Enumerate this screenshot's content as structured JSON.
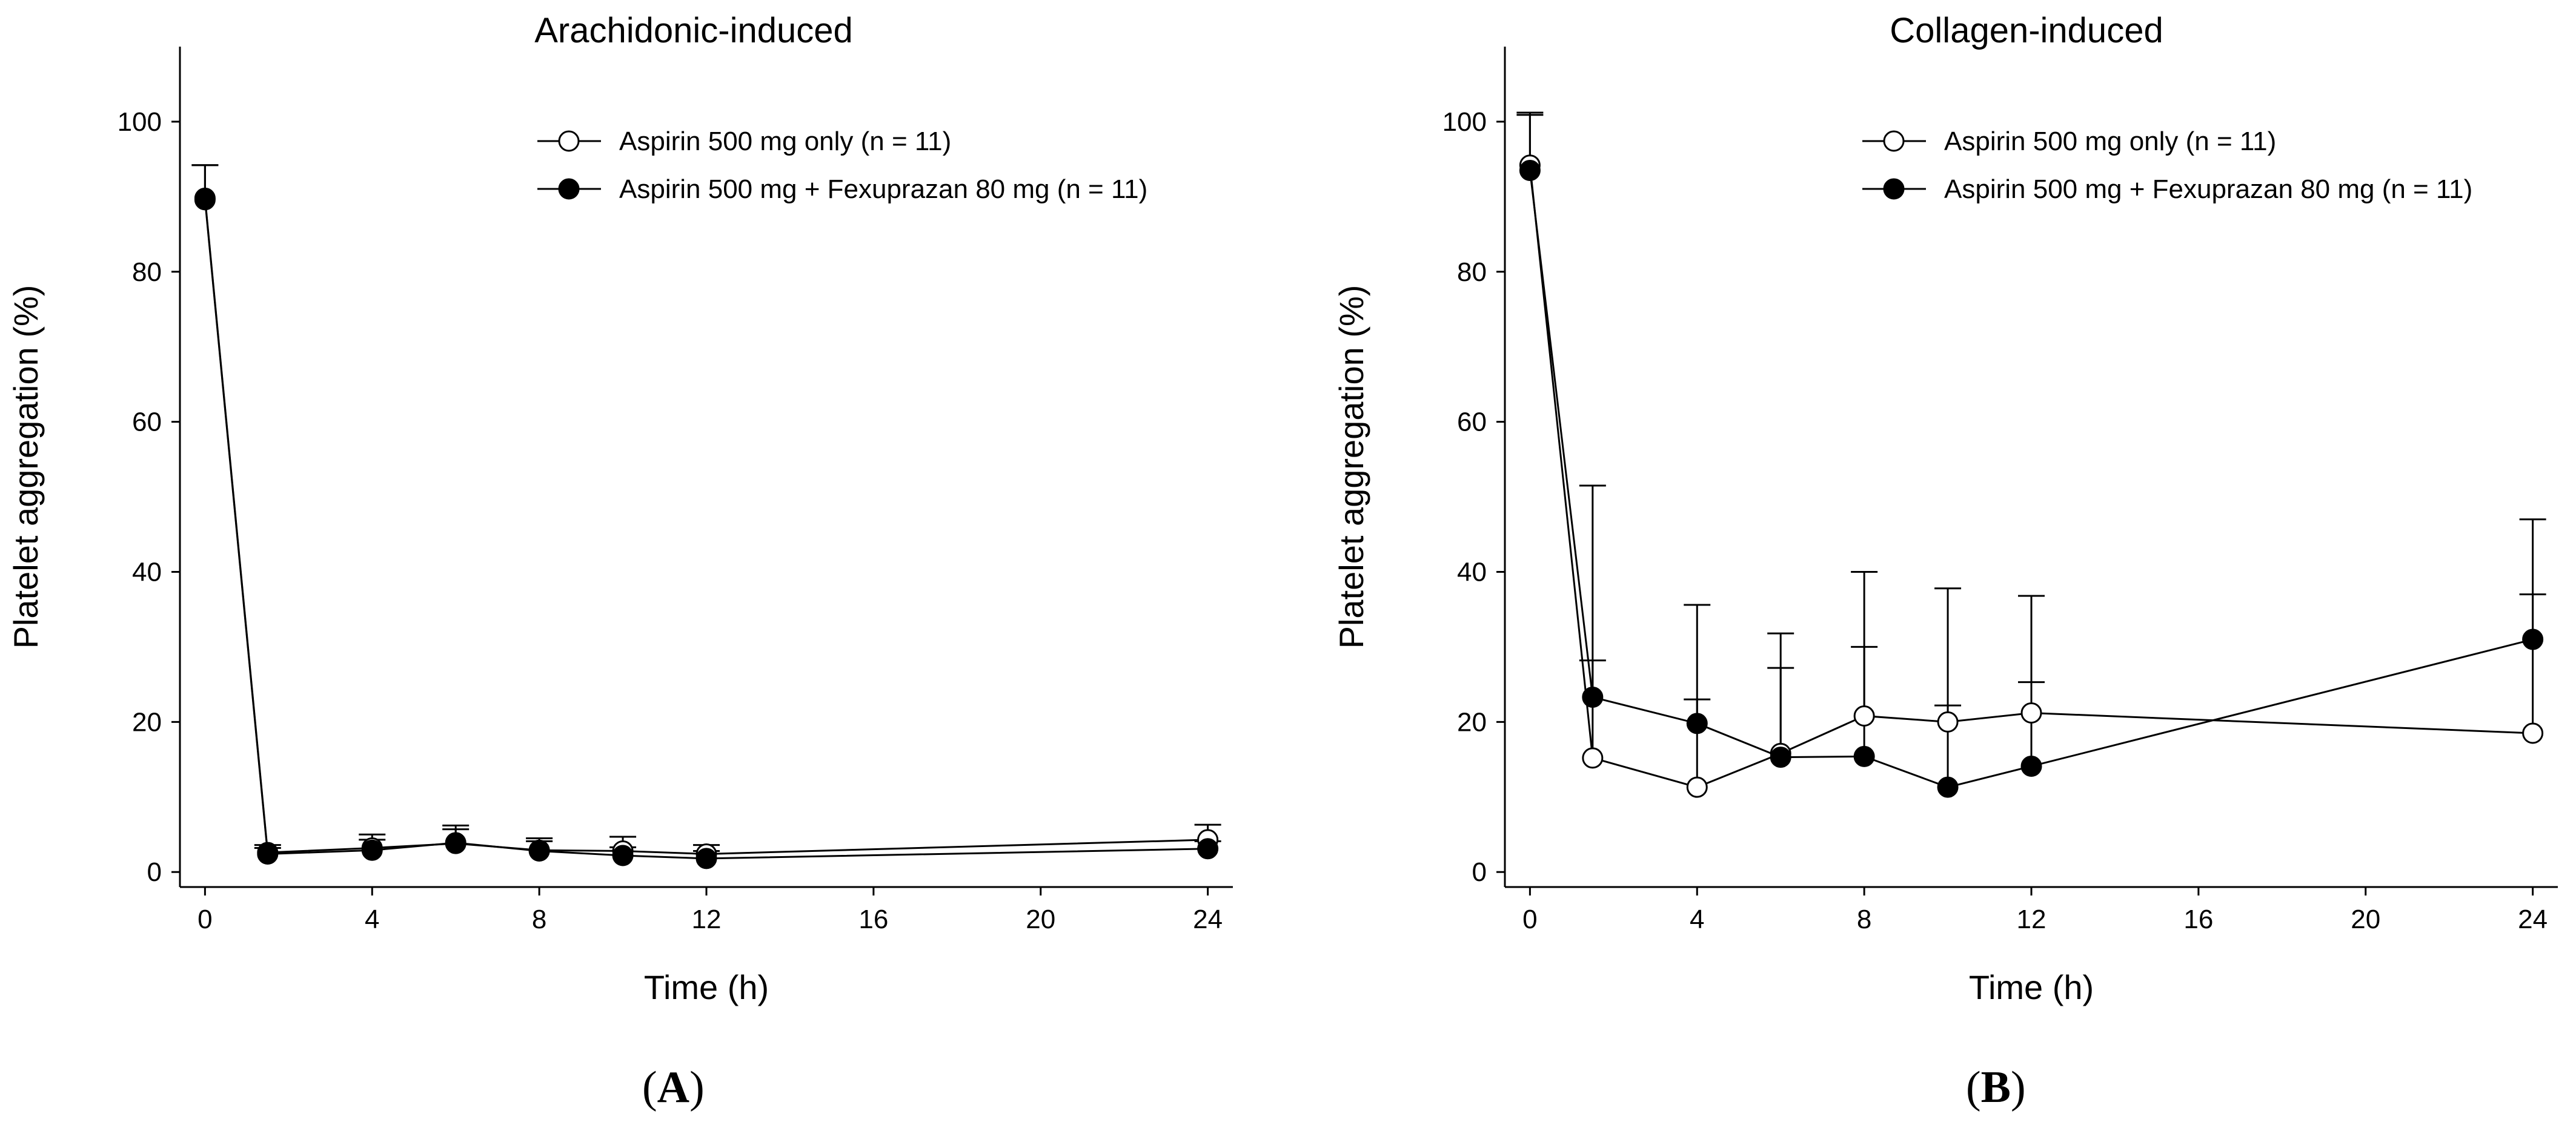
{
  "chart_data": [
    {
      "type": "line",
      "panel_letter": "A",
      "title": "Arachidonic-induced",
      "xlabel": "Time (h)",
      "ylabel": "Platelet aggregation (%)",
      "xlim": [
        -0.6,
        24.6
      ],
      "ylim": [
        -2,
        110
      ],
      "xticks": [
        0,
        4,
        8,
        12,
        16,
        20,
        24
      ],
      "yticks": [
        0,
        20,
        40,
        60,
        80,
        100
      ],
      "grid": false,
      "legend_position": "top-right",
      "series": [
        {
          "name": "Aspirin 500 mg only (n = 11)",
          "marker": "open-circle",
          "x": [
            0,
            1.5,
            4,
            6,
            8,
            10,
            12,
            24
          ],
          "values": [
            89.8,
            2.6,
            3.2,
            3.8,
            2.9,
            2.8,
            2.4,
            4.3
          ],
          "error_upper": [
            4.4,
            1.0,
            1.8,
            2.4,
            1.6,
            1.9,
            1.2,
            2.0
          ]
        },
        {
          "name": "Aspirin 500 mg + Fexuprazan 80 mg (n = 11)",
          "marker": "filled-circle",
          "x": [
            0,
            1.5,
            4,
            6,
            8,
            10,
            12,
            24
          ],
          "values": [
            89.6,
            2.4,
            2.9,
            3.9,
            2.8,
            2.2,
            1.8,
            3.1
          ],
          "error_upper": [
            4.6,
            0.8,
            1.4,
            1.8,
            1.3,
            1.1,
            1.0,
            1.0
          ]
        }
      ]
    },
    {
      "type": "line",
      "panel_letter": "B",
      "title": "Collagen-induced",
      "xlabel": "Time (h)",
      "ylabel": "Platelet aggregation (%)",
      "xlim": [
        -0.6,
        24.6
      ],
      "ylim": [
        -2,
        110
      ],
      "xticks": [
        0,
        4,
        8,
        12,
        16,
        20,
        24
      ],
      "yticks": [
        0,
        20,
        40,
        60,
        80,
        100
      ],
      "grid": false,
      "legend_position": "top-right",
      "series": [
        {
          "name": "Aspirin 500 mg only (n = 11)",
          "marker": "open-circle",
          "x": [
            0,
            1.5,
            4,
            6,
            8,
            10,
            12,
            24
          ],
          "values": [
            94.2,
            15.2,
            11.3,
            15.8,
            20.8,
            20.0,
            21.2,
            18.5
          ],
          "error_upper": [
            7.0,
            13.0,
            11.7,
            11.4,
            9.2,
            2.2,
            4.1,
            18.5
          ]
        },
        {
          "name": "Aspirin 500 mg + Fexuprazan 80 mg (n = 11)",
          "marker": "filled-circle",
          "x": [
            0,
            1.5,
            4,
            6,
            8,
            10,
            12,
            24
          ],
          "values": [
            93.5,
            23.3,
            19.8,
            15.3,
            15.4,
            11.3,
            14.1,
            31.0
          ],
          "error_upper": [
            7.4,
            28.2,
            15.8,
            16.5,
            24.6,
            26.5,
            22.7,
            16.0
          ]
        }
      ]
    }
  ]
}
